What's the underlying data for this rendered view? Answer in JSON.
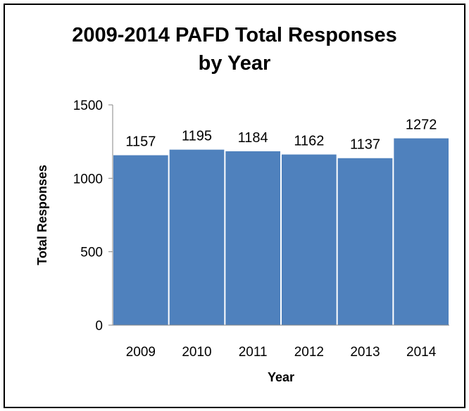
{
  "chart_data": {
    "type": "bar",
    "title_line1": "2009-2014 PAFD Total Responses",
    "title_line2": "by Year",
    "xlabel": "Year",
    "ylabel": "Total Responses",
    "categories": [
      "2009",
      "2010",
      "2011",
      "2012",
      "2013",
      "2014"
    ],
    "values": [
      1157,
      1195,
      1184,
      1162,
      1137,
      1272
    ],
    "ylim": [
      0,
      1500
    ],
    "yticks": [
      0,
      500,
      1000,
      1500
    ],
    "bar_color": "#4f81bd",
    "grid": false,
    "legend": "none"
  }
}
